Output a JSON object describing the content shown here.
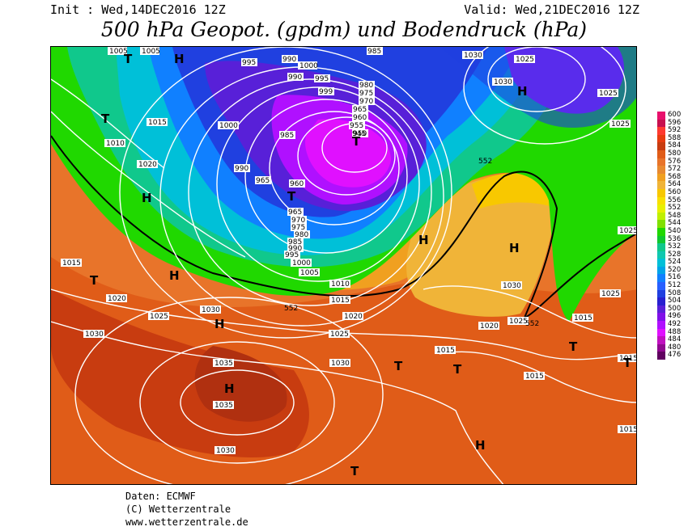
{
  "header": {
    "init": "Init : Wed,14DEC2016 12Z",
    "valid": "Valid: Wed,21DEC2016 12Z",
    "title": "500 hPa Geopot. (gpdm) und Bodendruck (hPa)"
  },
  "footer": {
    "line1": "Daten: ECMWF",
    "line2": "(C) Wetterzentrale",
    "line3": "www.wetterzentrale.de"
  },
  "scale": {
    "values": [
      "600",
      "596",
      "592",
      "588",
      "584",
      "580",
      "576",
      "572",
      "568",
      "564",
      "560",
      "556",
      "552",
      "548",
      "544",
      "540",
      "536",
      "532",
      "528",
      "524",
      "520",
      "516",
      "512",
      "508",
      "504",
      "500",
      "496",
      "492",
      "488",
      "484",
      "480",
      "476"
    ],
    "colors": [
      "#e8106c",
      "#c8104e",
      "#ff3a30",
      "#e83c10",
      "#c83c10",
      "#e05c18",
      "#e8742a",
      "#e88a30",
      "#f0a020",
      "#f0b438",
      "#f8c800",
      "#f8e000",
      "#e8f000",
      "#c0f000",
      "#80e000",
      "#20d800",
      "#10c830",
      "#10c88c",
      "#10c8b0",
      "#00c0d8",
      "#00a4e8",
      "#1080ff",
      "#2860ff",
      "#2040e0",
      "#2820d0",
      "#5820d8",
      "#8010e8",
      "#b010ff",
      "#e010ff",
      "#c010c0",
      "#900890",
      "#600060"
    ]
  },
  "map_labels": {
    "low_centers": [
      "T",
      "T",
      "T",
      "T",
      "T",
      "T",
      "T",
      "T",
      "T",
      "T"
    ],
    "high_centers": [
      "H",
      "H",
      "H",
      "H",
      "H",
      "H",
      "H",
      "H",
      "H",
      "H",
      "H"
    ],
    "isobars": [
      "1005",
      "1005",
      "995",
      "990",
      "1000",
      "990",
      "995",
      "985",
      "999",
      "980",
      "975",
      "970",
      "965",
      "960",
      "955",
      "950",
      "945",
      "1030",
      "1025",
      "1030",
      "1025",
      "1025",
      "1015",
      "1010",
      "1020",
      "1000",
      "985",
      "965",
      "960",
      "990",
      "965",
      "970",
      "975",
      "980",
      "985",
      "990",
      "995",
      "1000",
      "1005",
      "1010",
      "1015",
      "1020",
      "1015",
      "1020",
      "1025",
      "1030",
      "1020",
      "1025",
      "1035",
      "1035",
      "1030",
      "1030",
      "1025",
      "1030",
      "1020",
      "1025",
      "1015",
      "1015",
      "1025",
      "1020",
      "1015",
      "1015",
      "1030",
      "1025",
      "1015",
      "1025",
      "1030",
      "1030"
    ],
    "contour_552": [
      "552",
      "552",
      "552",
      "552"
    ]
  }
}
